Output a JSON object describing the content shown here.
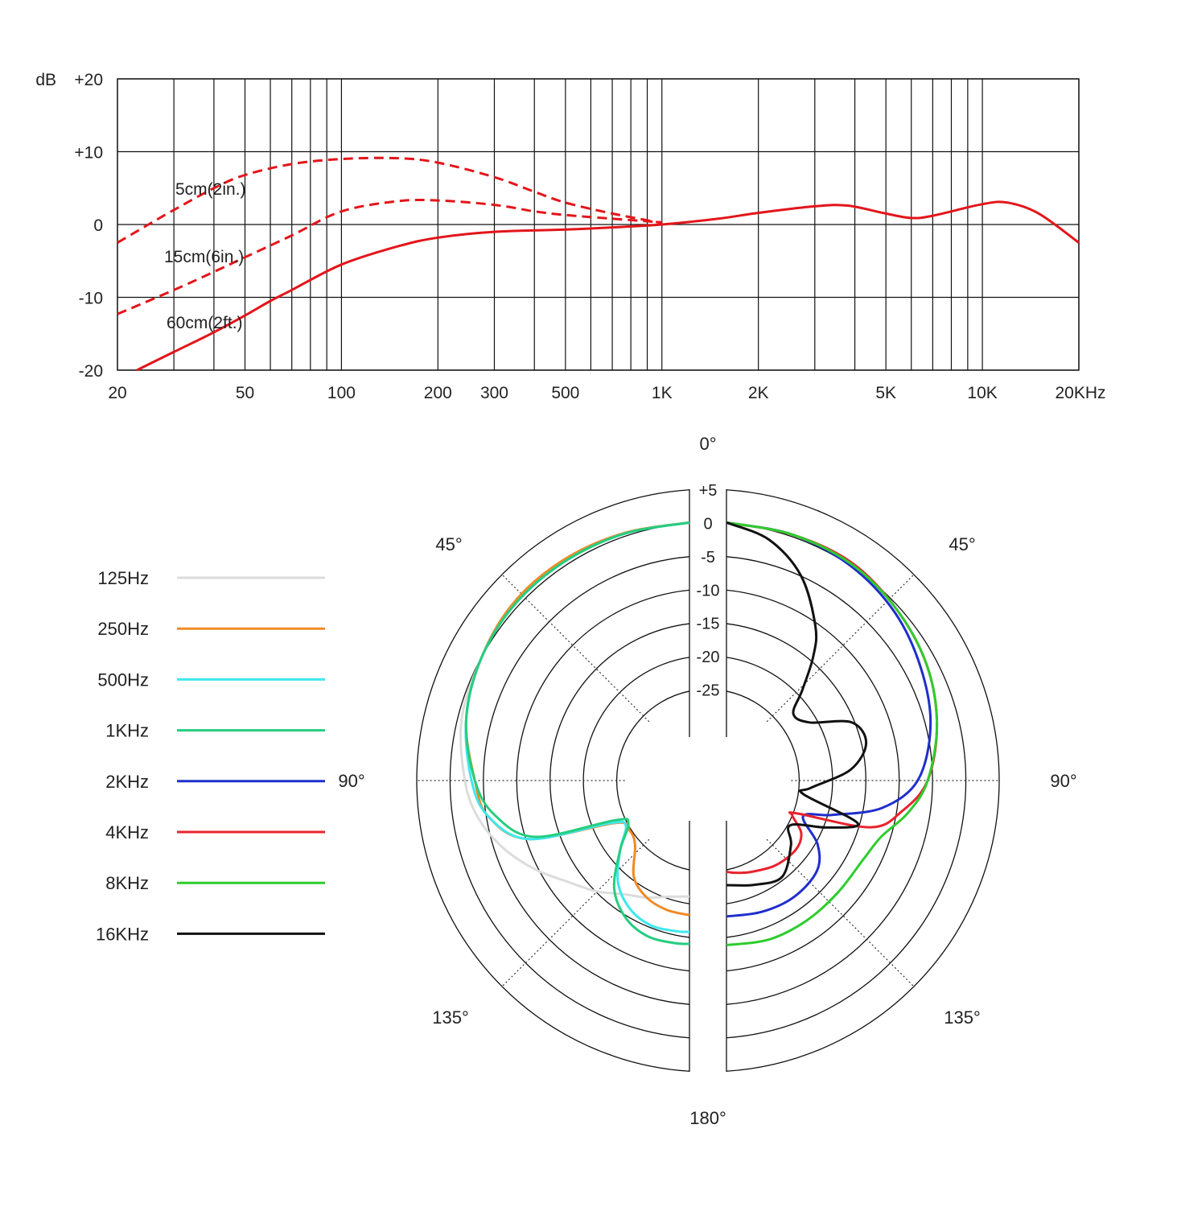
{
  "chart_data": [
    {
      "type": "line",
      "title": "",
      "ylabel": "dB",
      "xlabel": "",
      "x_scale": "log",
      "xlim": [
        20,
        20000
      ],
      "ylim": [
        -20,
        20
      ],
      "grid": true,
      "y_ticks": [
        {
          "value": 20,
          "label": "+20"
        },
        {
          "value": 10,
          "label": "+10"
        },
        {
          "value": 0,
          "label": "0"
        },
        {
          "value": -10,
          "label": "-10"
        },
        {
          "value": -20,
          "label": "-20"
        }
      ],
      "x_ticks": [
        {
          "value": 20,
          "label": "20"
        },
        {
          "value": 50,
          "label": "50"
        },
        {
          "value": 100,
          "label": "100"
        },
        {
          "value": 200,
          "label": "200"
        },
        {
          "value": 300,
          "label": "300"
        },
        {
          "value": 500,
          "label": "500"
        },
        {
          "value": 1000,
          "label": "1K"
        },
        {
          "value": 2000,
          "label": "2K"
        },
        {
          "value": 5000,
          "label": "5K"
        },
        {
          "value": 10000,
          "label": "10K"
        },
        {
          "value": 20000,
          "label": "20KHz"
        }
      ],
      "series": [
        {
          "name": "5cm(2in.)",
          "style": "dashed",
          "color": "#e3151a",
          "x": [
            20,
            25,
            30,
            40,
            50,
            70,
            100,
            150,
            200,
            300,
            400,
            500,
            700,
            1000
          ],
          "y": [
            -2.5,
            0,
            2,
            5,
            6.8,
            8.3,
            9,
            9.1,
            8.5,
            6.5,
            4.5,
            3,
            1.5,
            0.2
          ]
        },
        {
          "name": "15cm(6in.)",
          "style": "dashed",
          "color": "#e3151a",
          "x": [
            20,
            30,
            40,
            50,
            70,
            100,
            150,
            200,
            300,
            400,
            500,
            700,
            1000
          ],
          "y": [
            -12.3,
            -9,
            -6.5,
            -4.5,
            -1.5,
            1.8,
            3.2,
            3.3,
            2.7,
            1.8,
            1.3,
            0.8,
            0.3
          ]
        },
        {
          "name": "60cm(2ft.)",
          "style": "solid",
          "color": "#e3151a",
          "x": [
            23,
            30,
            40,
            50,
            60,
            70,
            100,
            150,
            200,
            300,
            500,
            700,
            1000,
            1500,
            2000,
            3000,
            3800,
            5000,
            6000,
            7000,
            10000,
            12000,
            15000,
            20000
          ],
          "y": [
            -20,
            -17.5,
            -14.8,
            -12.5,
            -10.5,
            -9,
            -5.5,
            -3,
            -1.8,
            -1,
            -0.7,
            -0.4,
            0,
            0.8,
            1.6,
            2.5,
            2.6,
            1.5,
            0.9,
            1.2,
            2.8,
            3,
            1.5,
            -2.5
          ]
        }
      ]
    },
    {
      "type": "polar",
      "title": "",
      "r_unit": "dB",
      "rlim": [
        -30,
        5
      ],
      "r_ticks": [
        {
          "value": 5,
          "label": "+5"
        },
        {
          "value": 0,
          "label": "0"
        },
        {
          "value": -5,
          "label": "-5"
        },
        {
          "value": -10,
          "label": "-10"
        },
        {
          "value": -15,
          "label": "-15"
        },
        {
          "value": -20,
          "label": "-20"
        },
        {
          "value": -25,
          "label": "-25"
        }
      ],
      "angle_labels": [
        {
          "angle": 0,
          "side": "center",
          "label": "0°"
        },
        {
          "angle": 45,
          "side": "left",
          "label": "45°"
        },
        {
          "angle": 45,
          "side": "right",
          "label": "45°"
        },
        {
          "angle": 90,
          "side": "left",
          "label": "90°"
        },
        {
          "angle": 90,
          "side": "right",
          "label": "90°"
        },
        {
          "angle": 135,
          "side": "left",
          "label": "135°"
        },
        {
          "angle": 135,
          "side": "right",
          "label": "135°"
        },
        {
          "angle": 180,
          "side": "center",
          "label": "180°"
        }
      ],
      "legend_position": "left",
      "series": [
        {
          "name": "125Hz",
          "color": "#dcdcdc",
          "side": "left",
          "angle": [
            0,
            15,
            30,
            45,
            60,
            75,
            90,
            100,
            110,
            120,
            130,
            140,
            150,
            160,
            170,
            180
          ],
          "r": [
            0,
            -0.3,
            -0.6,
            -1.2,
            -2.5,
            -3.3,
            -5,
            -6.5,
            -9,
            -12,
            -15,
            -17,
            -19,
            -20,
            -21,
            -21.3
          ]
        },
        {
          "name": "250Hz",
          "color": "#f08a24",
          "side": "left",
          "angle": [
            0,
            15,
            30,
            45,
            60,
            75,
            90,
            100,
            110,
            120,
            130,
            140,
            150,
            160,
            170,
            180
          ],
          "r": [
            0,
            -0.3,
            -0.6,
            -1.2,
            -2.5,
            -4,
            -6.5,
            -8,
            -13,
            -26,
            -27,
            -26,
            -22,
            -20,
            -19,
            -18.5
          ]
        },
        {
          "name": "500Hz",
          "color": "#3ee8ee",
          "side": "left",
          "angle": [
            0,
            15,
            30,
            45,
            60,
            75,
            90,
            100,
            110,
            118,
            125,
            135,
            145,
            155,
            165,
            175,
            180
          ],
          "r": [
            0,
            -0.4,
            -0.9,
            -1.5,
            -2.5,
            -4,
            -6,
            -8,
            -13,
            -25,
            -27,
            -24,
            -20,
            -17.5,
            -16.2,
            -16,
            -16
          ]
        },
        {
          "name": "1KHz",
          "color": "#26cd7f",
          "side": "left",
          "angle": [
            0,
            15,
            30,
            45,
            60,
            75,
            90,
            100,
            110,
            118,
            125,
            135,
            145,
            155,
            165,
            175,
            180
          ],
          "r": [
            0,
            -0.4,
            -0.9,
            -1.5,
            -2.5,
            -4,
            -6.5,
            -9,
            -14,
            -26,
            -27.5,
            -24,
            -19,
            -16,
            -14.5,
            -14.2,
            -14.2
          ]
        },
        {
          "name": "2KHz",
          "color": "#1f2ecc",
          "side": "right",
          "angle": [
            0,
            15,
            30,
            45,
            60,
            75,
            90,
            100,
            108,
            115,
            125,
            135,
            150,
            165,
            180
          ],
          "r": [
            0,
            -0.5,
            -1.5,
            -3,
            -5,
            -7,
            -10,
            -15,
            -22,
            -26,
            -22,
            -19.5,
            -18.5,
            -18.3,
            -18.3
          ]
        },
        {
          "name": "4KHz",
          "color": "#e8232d",
          "side": "right",
          "angle": [
            0,
            15,
            30,
            45,
            60,
            75,
            90,
            100,
            108,
            115,
            118,
            125,
            135,
            150,
            165,
            175,
            180
          ],
          "r": [
            0,
            -0.5,
            -1,
            -2.5,
            -4,
            -6,
            -8.5,
            -12,
            -16,
            -27,
            -27.5,
            -25,
            -24,
            -24,
            -24.5,
            -24.8,
            -25
          ]
        },
        {
          "name": "8KHz",
          "color": "#2ecc2e",
          "side": "right",
          "angle": [
            0,
            15,
            30,
            45,
            60,
            75,
            90,
            100,
            110,
            120,
            135,
            150,
            165,
            180
          ],
          "r": [
            0,
            -0.5,
            -1.2,
            -2.5,
            -4,
            -6,
            -8.5,
            -11,
            -14,
            -15,
            -15,
            -14.5,
            -14,
            -14
          ]
        },
        {
          "name": "16KHz",
          "color": "#111111",
          "side": "right",
          "angle": [
            0,
            10,
            20,
            30,
            35,
            40,
            45,
            55,
            65,
            75,
            85,
            95,
            100,
            108,
            115,
            125,
            135,
            150,
            165,
            180
          ],
          "r": [
            0,
            -2,
            -6,
            -12,
            -16,
            -21,
            -24.5,
            -23.5,
            -18,
            -17,
            -20,
            -26,
            -27,
            -18,
            -22,
            -27,
            -25,
            -22,
            -22.5,
            -23
          ]
        }
      ]
    }
  ]
}
